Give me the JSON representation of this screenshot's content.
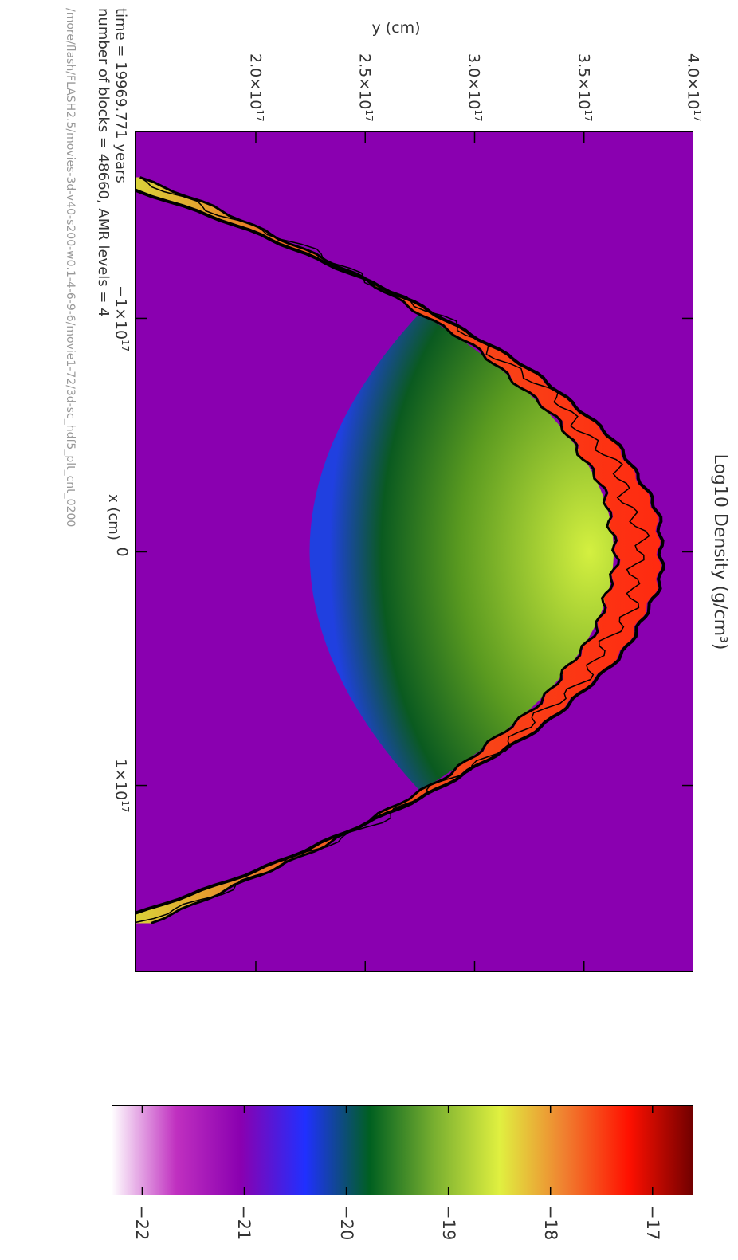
{
  "chart_data": {
    "type": "heatmap",
    "title": "Log10 Density (g/cm³)",
    "xlabel": "x (cm)",
    "ylabel": "y (cm)",
    "x_ticks": [
      {
        "value": -1e+17,
        "label": "−1×10",
        "exp": "17"
      },
      {
        "value": 0,
        "label": "0",
        "exp": ""
      },
      {
        "value": 1e+17,
        "label": "1×10",
        "exp": "17"
      }
    ],
    "y_ticks": [
      {
        "value": 2e+17,
        "label": "2.0×10",
        "exp": "17"
      },
      {
        "value": 2.5e+17,
        "label": "2.5×10",
        "exp": "17"
      },
      {
        "value": 3e+17,
        "label": "3.0×10",
        "exp": "17"
      },
      {
        "value": 3.5e+17,
        "label": "3.5×10",
        "exp": "17"
      },
      {
        "value": 4e+17,
        "label": "4.0×10",
        "exp": "17"
      }
    ],
    "xlim": [
      -1.8e+17,
      1.8e+17
    ],
    "ylim": [
      1.45e+17,
      4e+17
    ],
    "colorbar": {
      "range": [
        -22.3,
        -16.6
      ],
      "ticks": [
        {
          "value": -22,
          "label": "−22"
        },
        {
          "value": -21,
          "label": "−21"
        },
        {
          "value": -20,
          "label": "−20"
        },
        {
          "value": -19,
          "label": "−19"
        },
        {
          "value": -18,
          "label": "−18"
        },
        {
          "value": -17,
          "label": "−17"
        }
      ],
      "colors": [
        "#ffffff",
        "#c030c0",
        "#8a00b0",
        "#2030ff",
        "#006020",
        "#7ab030",
        "#e0f040",
        "#f08030",
        "#ff1000",
        "#700000"
      ]
    },
    "shell_density_range": [
      -18.3,
      -17.0
    ],
    "interior_density_range": [
      -20.8,
      -18.2
    ],
    "ambient_density": -21.4
  },
  "annotations": {
    "time_text": "time =   19969.771 years",
    "blocks_text": "number of blocks =     48660, AMR levels =      4",
    "path_text": "/more/flash/FLASH2.5/movies-3d-v40-s200-w0.1-4-6-9-6/movie1-72/3d-sc_hdf5_plt_cnt_0200"
  },
  "colors": {
    "ambient": "#8a00b0",
    "shell_edge": "#f06020",
    "shell_core": "#ff2a10",
    "interior_bright": "#d4f040",
    "interior_mid": "#5a9a20",
    "interior_dark": "#0a5a20",
    "interior_edge": "#2040e0",
    "contour": "#000000"
  }
}
